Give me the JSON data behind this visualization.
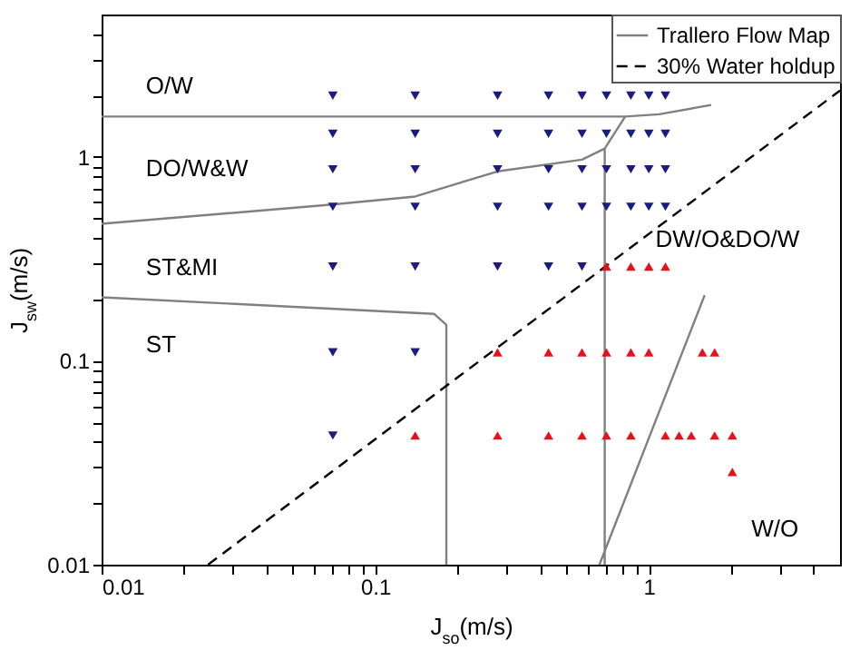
{
  "chart_data": {
    "type": "scatter",
    "xlabel": "J$_{so}$(m/s)",
    "ylabel": "J$_{sw}$(m/s)",
    "log": "xy",
    "grid": false,
    "legend": "top right",
    "xlim": [
      0.01,
      5
    ],
    "ylim": [
      0.01,
      5
    ],
    "xticks": [
      0.01,
      {
        "value": 0.02,
        "label": null
      },
      {
        "value": 0.03,
        "label": null
      },
      {
        "value": 0.04,
        "label": null
      },
      {
        "value": 0.05,
        "label": null
      },
      {
        "value": 0.06,
        "label": null
      },
      {
        "value": 0.07,
        "label": null
      },
      {
        "value": 0.08,
        "label": null
      },
      {
        "value": 0.09,
        "label": null
      },
      0.1,
      {
        "value": 0.2,
        "label": null
      },
      {
        "value": 0.3,
        "label": null
      },
      {
        "value": 0.4,
        "label": null
      },
      {
        "value": 0.5,
        "label": null
      },
      {
        "value": 0.6,
        "label": null
      },
      {
        "value": 0.7,
        "label": null
      },
      {
        "value": 0.8,
        "label": null
      },
      {
        "value": 0.9,
        "label": null
      },
      1,
      {
        "value": 2,
        "label": null
      },
      {
        "value": 3,
        "label": null
      },
      {
        "value": 4,
        "label": null
      }
    ],
    "yticks": [
      0.01,
      {
        "value": 0.02,
        "label": null
      },
      {
        "value": 0.03,
        "label": null
      },
      {
        "value": 0.04,
        "label": null
      },
      {
        "value": 0.05,
        "label": null
      },
      {
        "value": 0.06,
        "label": null
      },
      {
        "value": 0.07,
        "label": null
      },
      {
        "value": 0.08,
        "label": null
      },
      {
        "value": 0.09,
        "label": null
      },
      0.1,
      {
        "value": 0.2,
        "label": null
      },
      {
        "value": 0.3,
        "label": null
      },
      {
        "value": 0.4,
        "label": null
      },
      {
        "value": 0.5,
        "label": null
      },
      {
        "value": 0.6,
        "label": null
      },
      {
        "value": 0.7,
        "label": null
      },
      {
        "value": 0.8,
        "label": null
      },
      {
        "value": 0.9,
        "label": null
      },
      1,
      {
        "value": 2,
        "label": null
      },
      {
        "value": 3,
        "label": null
      },
      {
        "value": 4,
        "label": null
      }
    ],
    "series": [
      {
        "name": "Trallero Flow Map",
        "type": "line",
        "color": "#808080",
        "line_style": "solid",
        "x": [
          0.01,
          0.82,
          1.09,
          1.69,
          null,
          0.01,
          0.07,
          0.14,
          0.28,
          0.57,
          0.69,
          0.82,
          null,
          0.69,
          0.69,
          null,
          0.01,
          0.164,
          0.182,
          0.182,
          null,
          0.66,
          1.6
        ],
        "values": [
          1.58,
          1.58,
          1.62,
          1.8,
          null,
          0.47,
          0.585,
          0.64,
          0.85,
          0.97,
          1.1,
          1.58,
          null,
          1.1,
          0.01,
          null,
          0.205,
          0.17,
          0.15,
          0.01,
          null,
          0.01,
          0.21
        ]
      },
      {
        "name": "30% Water holdup",
        "type": "line",
        "color": "#000000",
        "line_style": "dashed",
        "x": [
          0.0245,
          5
        ],
        "values": [
          0.01,
          2.12
        ]
      },
      {
        "color": "#1c1c80",
        "marker": "triangle-down",
        "x": [
          0.07,
          0.14,
          0.28,
          0.43,
          0.57,
          0.7,
          0.86,
          1.0,
          1.15,
          0.07,
          0.14,
          0.28,
          0.43,
          0.57,
          0.7,
          0.86,
          1.0,
          1.15,
          0.07,
          0.14,
          0.28,
          0.43,
          0.57,
          0.7,
          0.86,
          1.0,
          1.15,
          0.07,
          0.14,
          0.28,
          0.43,
          0.57,
          0.7,
          0.86,
          1.0,
          1.15,
          0.07,
          0.14,
          0.28,
          0.43,
          0.57,
          0.07,
          0.14,
          0.07
        ],
        "values": [
          2.0,
          2.0,
          2.0,
          2.0,
          2.0,
          2.0,
          2.0,
          2.0,
          2.0,
          1.3,
          1.3,
          1.3,
          1.3,
          1.3,
          1.3,
          1.3,
          1.3,
          1.3,
          0.87,
          0.87,
          0.87,
          0.87,
          0.87,
          0.87,
          0.87,
          0.87,
          0.87,
          0.57,
          0.57,
          0.57,
          0.57,
          0.57,
          0.57,
          0.57,
          0.57,
          0.57,
          0.29,
          0.29,
          0.29,
          0.29,
          0.29,
          0.11,
          0.11,
          0.043
        ]
      },
      {
        "color": "#e8101a",
        "marker": "triangle",
        "x": [
          0.7,
          0.86,
          1.0,
          1.15,
          0.28,
          0.43,
          0.57,
          0.7,
          0.86,
          1.0,
          1.57,
          1.74,
          0.14,
          0.28,
          0.43,
          0.57,
          0.7,
          0.86,
          1.15,
          1.29,
          1.43,
          1.74,
          2.02,
          2.02
        ],
        "values": [
          0.29,
          0.29,
          0.29,
          0.29,
          0.11,
          0.11,
          0.11,
          0.11,
          0.11,
          0.11,
          0.11,
          0.11,
          0.043,
          0.043,
          0.043,
          0.043,
          0.043,
          0.043,
          0.043,
          0.043,
          0.043,
          0.043,
          0.043,
          0.0285
        ]
      }
    ],
    "annotations": [
      "O/W",
      "DO/W&W",
      "ST&MI",
      "ST",
      "DW/O&DO/W",
      "W/O"
    ]
  }
}
